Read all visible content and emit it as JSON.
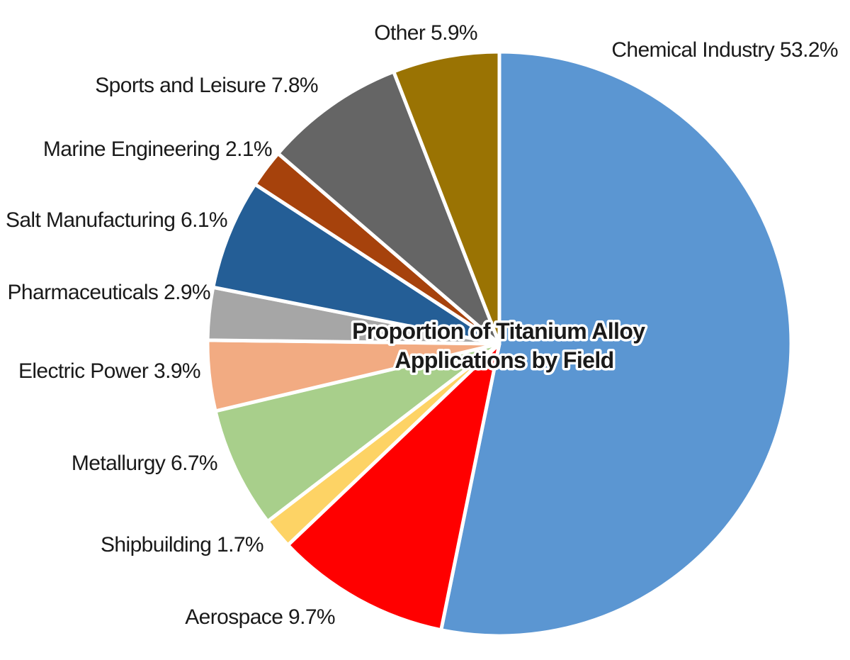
{
  "chart_data": {
    "type": "pie",
    "title": [
      "Proportion of Titanium Alloy",
      "Applications by Field"
    ],
    "slices": [
      {
        "label": "Chemical Industry",
        "value": 53.2,
        "display": "Chemical Industry 53.2%",
        "color": "#5B96D2"
      },
      {
        "label": "Aerospace",
        "value": 9.7,
        "display": "Aerospace 9.7%",
        "color": "#FF0000"
      },
      {
        "label": "Shipbuilding",
        "value": 1.7,
        "display": "Shipbuilding 1.7%",
        "color": "#FDD365"
      },
      {
        "label": "Metallurgy",
        "value": 6.7,
        "display": "Metallurgy 6.7%",
        "color": "#A8CF8B"
      },
      {
        "label": "Electric Power",
        "value": 3.9,
        "display": "Electric Power 3.9%",
        "color": "#F2AB82"
      },
      {
        "label": "Pharmaceuticals",
        "value": 2.9,
        "display": "Pharmaceuticals 2.9%",
        "color": "#A6A6A6"
      },
      {
        "label": "Salt Manufacturing",
        "value": 6.1,
        "display": "Salt Manufacturing 6.1%",
        "color": "#245E96"
      },
      {
        "label": "Marine Engineering",
        "value": 2.1,
        "display": "Marine Engineering 2.1%",
        "color": "#A6420C"
      },
      {
        "label": "Sports and Leisure",
        "value": 7.8,
        "display": "Sports and Leisure 7.8%",
        "color": "#656565"
      },
      {
        "label": "Other",
        "value": 5.9,
        "display": "Other 5.9%",
        "color": "#9A7303"
      }
    ],
    "start_angle": "12 o'clock",
    "direction": "clockwise",
    "legend": "none"
  }
}
